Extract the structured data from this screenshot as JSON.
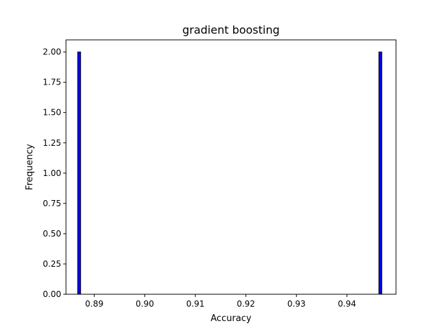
{
  "chart_data": {
    "type": "bar",
    "title": "gradient boosting",
    "xlabel": "Accuracy",
    "ylabel": "Frequency",
    "xlim": [
      0.8844,
      0.9497
    ],
    "ylim": [
      0,
      2.1
    ],
    "grid": false,
    "bin_width": 0.00058,
    "bars": [
      {
        "x": 0.887,
        "value": 2
      },
      {
        "x": 0.9466,
        "value": 2
      }
    ],
    "xticks": [
      {
        "value": 0.89,
        "label": "0.89"
      },
      {
        "value": 0.9,
        "label": "0.90"
      },
      {
        "value": 0.91,
        "label": "0.91"
      },
      {
        "value": 0.92,
        "label": "0.92"
      },
      {
        "value": 0.93,
        "label": "0.93"
      },
      {
        "value": 0.94,
        "label": "0.94"
      }
    ],
    "yticks": [
      {
        "value": 0.0,
        "label": "0.00"
      },
      {
        "value": 0.25,
        "label": "0.25"
      },
      {
        "value": 0.5,
        "label": "0.50"
      },
      {
        "value": 0.75,
        "label": "0.75"
      },
      {
        "value": 1.0,
        "label": "1.00"
      },
      {
        "value": 1.25,
        "label": "1.25"
      },
      {
        "value": 1.5,
        "label": "1.50"
      },
      {
        "value": 1.75,
        "label": "1.75"
      },
      {
        "value": 2.0,
        "label": "2.00"
      }
    ],
    "colors": {
      "bar_fill": "#0000ff",
      "bar_edge": "#000000"
    }
  }
}
